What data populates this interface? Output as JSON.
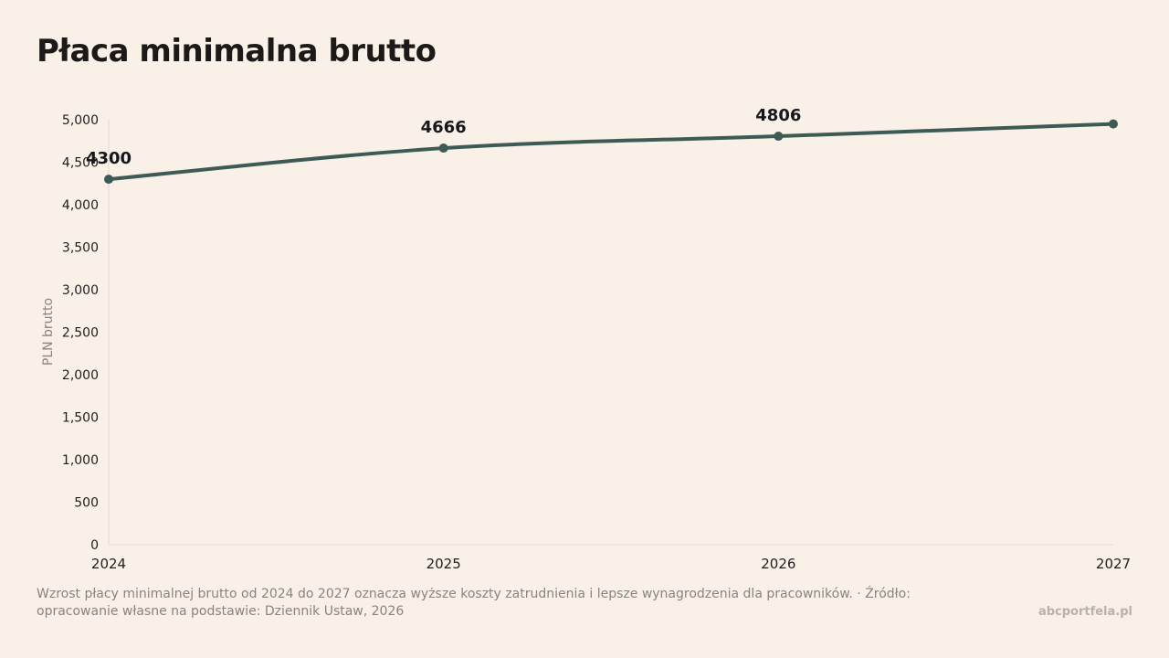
{
  "chart_data": {
    "type": "line",
    "title": "Płaca minimalna brutto",
    "ylabel": "PLN brutto",
    "xlabel": "",
    "x": [
      "2024",
      "2025",
      "2026",
      "2027"
    ],
    "series": [
      {
        "values": [
          4300,
          4666,
          4806,
          4950
        ],
        "data_labels": [
          "4300",
          "4666",
          "4806",
          ""
        ]
      }
    ],
    "yticks": [
      0,
      500,
      1000,
      1500,
      2000,
      2500,
      3000,
      3500,
      4000,
      4500,
      5000
    ],
    "ytick_labels": [
      "0",
      "500",
      "1,000",
      "1,500",
      "2,000",
      "2,500",
      "3,000",
      "3,500",
      "4,000",
      "4,500",
      "5,000"
    ],
    "ylim": [
      0,
      5000
    ],
    "grid": false,
    "legend": "none",
    "line_color": "#3d5a55"
  },
  "footer": {
    "note": "Wzrost płacy minimalnej brutto od 2024 do 2027 oznacza wyższe koszty zatrudnienia i lepsze wynagrodzenia dla pracowników. · Źródło: opracowanie własne na podstawie: Dziennik Ustaw, 2026",
    "brand": "abcportfela.pl"
  }
}
